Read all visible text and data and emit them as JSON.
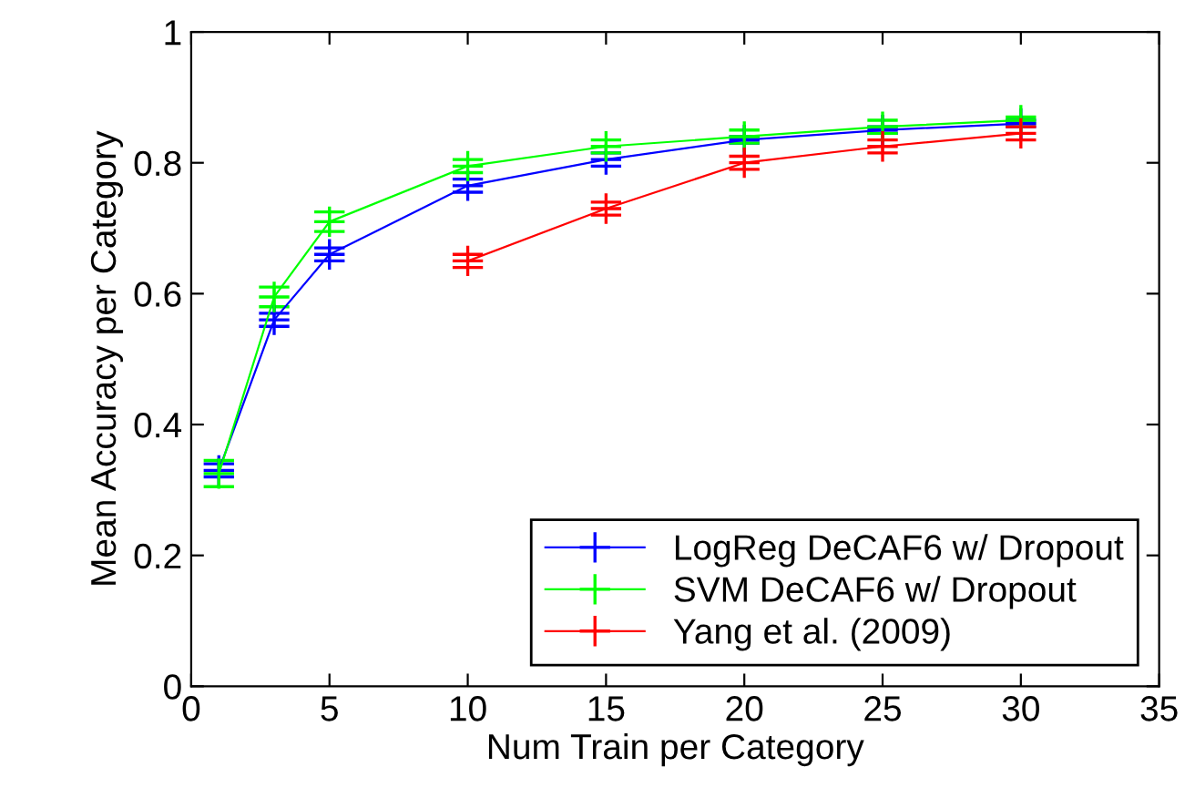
{
  "chart_data": {
    "type": "line",
    "xlabel": "Num Train per Category",
    "ylabel": "Mean Accuracy per Category",
    "x": [
      1,
      3,
      5,
      10,
      15,
      20,
      25,
      30
    ],
    "series": [
      {
        "name": "LogReg DeCAF6 w/ Dropout",
        "color": "#0000ff",
        "values": [
          0.33,
          0.56,
          0.66,
          0.765,
          0.805,
          0.835,
          0.85,
          0.86
        ],
        "errors": [
          0.01,
          0.01,
          0.01,
          0.01,
          0.01,
          0.005,
          0.005,
          0.005
        ]
      },
      {
        "name": "SVM DeCAF6 w/ Dropout",
        "color": "#00ff00",
        "values": [
          0.325,
          0.595,
          0.71,
          0.795,
          0.825,
          0.84,
          0.855,
          0.865
        ],
        "errors": [
          0.02,
          0.015,
          0.015,
          0.01,
          0.01,
          0.01,
          0.01,
          0.005
        ]
      },
      {
        "name": "Yang et al. (2009)",
        "color": "#ff0000",
        "x": [
          10,
          15,
          20,
          25,
          30
        ],
        "values": [
          0.65,
          0.73,
          0.8,
          0.825,
          0.845
        ],
        "errors": [
          0.01,
          0.01,
          0.01,
          0.01,
          0.01
        ]
      }
    ],
    "xlim": [
      0,
      35
    ],
    "xticks": [
      0,
      5,
      10,
      15,
      20,
      25,
      30,
      35
    ],
    "ylim": [
      0,
      1
    ],
    "yticks": [
      0,
      0.2,
      0.4,
      0.6,
      0.8,
      1
    ],
    "marker": "cross",
    "line_style": "solid",
    "grid": false,
    "legend": "bottom right"
  }
}
